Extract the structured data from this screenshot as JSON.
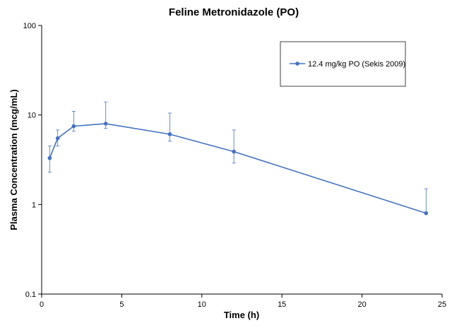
{
  "chart_data": {
    "type": "line",
    "title": "Feline Metronidazole (PO)",
    "xlabel": "Time (h)",
    "ylabel": "Plasma Concentration (mcg/mL)",
    "xlim": [
      0,
      25
    ],
    "ylim": [
      0.1,
      100
    ],
    "yscale": "log",
    "grid": false,
    "legend_position": "top-right",
    "x_ticks": [
      0,
      5,
      10,
      15,
      20,
      25
    ],
    "x_tick_labels": [
      "0",
      "5",
      "10",
      "15",
      "20",
      "25"
    ],
    "y_ticks": [
      0.1,
      1,
      10,
      100
    ],
    "y_tick_labels": [
      "0.1",
      "1",
      "10",
      "100"
    ],
    "series": [
      {
        "name": "12.4 mg/kg PO (Sekis 2009)",
        "color": "#4472c4",
        "x": [
          0.5,
          1,
          2,
          4,
          8,
          12,
          24
        ],
        "y": [
          3.3,
          5.5,
          7.5,
          8.0,
          6.1,
          3.9,
          0.8
        ],
        "err_lower": [
          2.3,
          4.5,
          6.6,
          7.1,
          5.1,
          2.9,
          0.8
        ],
        "err_upper": [
          4.5,
          6.8,
          11.0,
          14.0,
          10.5,
          6.8,
          1.5
        ]
      }
    ]
  }
}
